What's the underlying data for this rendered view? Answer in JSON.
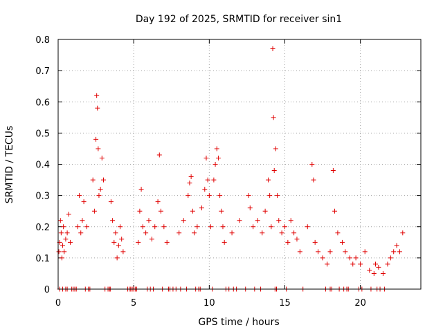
{
  "chart_data": {
    "type": "scatter",
    "title": "Day 192 of 2025, SRMTID for receiver sin1",
    "xlabel": "GPS time / hours",
    "ylabel": "SRMTID / TECUs",
    "xlim": [
      0,
      24
    ],
    "ylim": [
      0,
      0.8
    ],
    "xticks": [
      0,
      5,
      10,
      15,
      20
    ],
    "xtick_labels": [
      "0",
      "5",
      "10",
      "15",
      "20"
    ],
    "yticks": [
      0,
      0.1,
      0.2,
      0.3,
      0.4,
      0.5,
      0.6,
      0.7,
      0.8
    ],
    "ytick_labels": [
      "0",
      "0.1",
      "0.2",
      "0.3",
      "0.4",
      "0.5",
      "0.6",
      "0.7",
      "0.8"
    ],
    "grid": true,
    "marker": "+",
    "color": "#e00000",
    "series": [
      {
        "name": "SRMTID",
        "x": [
          0.05,
          0.1,
          0.15,
          0.2,
          0.25,
          0.3,
          0.35,
          0.4,
          0.5,
          0.6,
          0.7,
          0.8,
          1.3,
          1.4,
          1.5,
          1.6,
          1.7,
          1.9,
          2.3,
          2.4,
          2.5,
          2.55,
          2.6,
          2.65,
          2.7,
          2.8,
          2.9,
          3.0,
          3.5,
          3.6,
          3.7,
          3.8,
          3.9,
          4.0,
          4.1,
          4.2,
          4.3,
          5.3,
          5.4,
          5.5,
          5.6,
          5.8,
          6.0,
          6.2,
          6.4,
          6.6,
          6.7,
          6.8,
          7.0,
          7.2,
          8.0,
          8.3,
          8.6,
          8.7,
          8.8,
          8.9,
          9.0,
          9.2,
          9.5,
          9.7,
          9.8,
          9.9,
          10.0,
          10.1,
          10.3,
          10.4,
          10.5,
          10.6,
          10.7,
          10.8,
          10.9,
          11.0,
          11.5,
          12.0,
          12.6,
          12.7,
          12.9,
          13.2,
          13.5,
          13.7,
          13.9,
          14.0,
          14.1,
          14.2,
          14.25,
          14.3,
          14.4,
          14.5,
          14.6,
          14.8,
          15.0,
          15.2,
          15.4,
          15.6,
          15.8,
          16.0,
          16.5,
          16.8,
          16.9,
          17.0,
          17.2,
          17.5,
          17.8,
          18.0,
          18.2,
          18.3,
          18.5,
          18.8,
          19.0,
          19.3,
          19.5,
          19.7,
          20.0,
          20.3,
          20.6,
          20.9,
          21.0,
          21.2,
          21.5,
          21.8,
          22.0,
          22.2,
          22.4,
          22.6,
          22.8,
          0.1,
          0.3,
          0.5,
          0.6,
          0.9,
          1.0,
          1.1,
          1.2,
          1.8,
          2.0,
          2.1,
          3.1,
          3.3,
          3.4,
          3.45,
          4.6,
          4.7,
          4.8,
          4.9,
          5.0,
          5.1,
          5.2,
          5.9,
          6.1,
          6.3,
          6.9,
          7.3,
          7.4,
          7.6,
          7.8,
          8.1,
          8.5,
          9.1,
          9.3,
          9.4,
          10.2,
          11.1,
          11.3,
          11.6,
          11.8,
          12.4,
          13.0,
          13.4,
          14.35,
          14.45,
          15.1,
          16.2,
          17.7,
          18.0,
          18.1,
          18.6,
          18.9,
          19.1,
          19.2,
          19.9,
          20.1,
          20.7,
          21.1,
          21.3,
          21.6
        ],
        "y": [
          0.12,
          0.15,
          0.22,
          0.18,
          0.1,
          0.14,
          0.2,
          0.12,
          0.16,
          0.18,
          0.24,
          0.15,
          0.2,
          0.3,
          0.18,
          0.22,
          0.28,
          0.2,
          0.35,
          0.25,
          0.48,
          0.62,
          0.58,
          0.45,
          0.3,
          0.32,
          0.42,
          0.35,
          0.28,
          0.22,
          0.15,
          0.18,
          0.1,
          0.14,
          0.2,
          0.16,
          0.12,
          0.15,
          0.25,
          0.32,
          0.2,
          0.18,
          0.22,
          0.16,
          0.2,
          0.28,
          0.43,
          0.25,
          0.2,
          0.15,
          0.18,
          0.22,
          0.3,
          0.34,
          0.36,
          0.25,
          0.18,
          0.2,
          0.26,
          0.32,
          0.42,
          0.35,
          0.3,
          0.2,
          0.35,
          0.4,
          0.45,
          0.42,
          0.3,
          0.25,
          0.2,
          0.15,
          0.18,
          0.22,
          0.3,
          0.26,
          0.2,
          0.22,
          0.18,
          0.25,
          0.35,
          0.3,
          0.2,
          0.77,
          0.55,
          0.38,
          0.45,
          0.3,
          0.22,
          0.18,
          0.2,
          0.15,
          0.22,
          0.18,
          0.16,
          0.12,
          0.2,
          0.4,
          0.35,
          0.15,
          0.12,
          0.1,
          0.08,
          0.12,
          0.38,
          0.25,
          0.18,
          0.15,
          0.12,
          0.1,
          0.08,
          0.1,
          0.08,
          0.12,
          0.06,
          0.05,
          0.08,
          0.07,
          0.05,
          0.08,
          0.1,
          0.12,
          0.14,
          0.12,
          0.18,
          0,
          0,
          0,
          0,
          0,
          0,
          0,
          0,
          0,
          0,
          0,
          0,
          0,
          0,
          0,
          0,
          0,
          0,
          0,
          0,
          0,
          0,
          0,
          0,
          0,
          0,
          0,
          0,
          0,
          0,
          0,
          0,
          0,
          0,
          0,
          0,
          0,
          0,
          0,
          0,
          0,
          0,
          0,
          0,
          0,
          0,
          0,
          0,
          0,
          0,
          0,
          0,
          0,
          0,
          0,
          0,
          0,
          0,
          0,
          0
        ]
      }
    ]
  }
}
